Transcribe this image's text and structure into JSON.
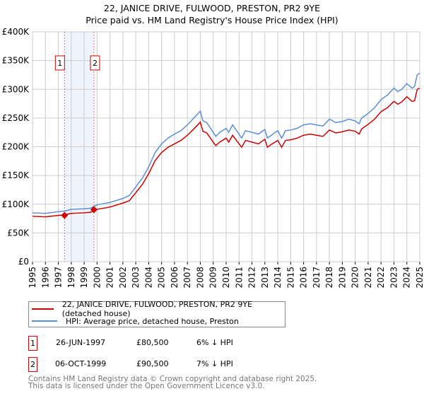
{
  "chart_data": {
    "type": "line",
    "title": "22, JANICE DRIVE, FULWOOD, PRESTON, PR2 9YE",
    "subtitle": "Price paid vs. HM Land Registry's House Price Index (HPI)",
    "xlim": [
      1995,
      2025
    ],
    "ylim": [
      0,
      400000
    ],
    "yticks": [
      {
        "v": 0,
        "l": "£0"
      },
      {
        "v": 50000,
        "l": "£50K"
      },
      {
        "v": 100000,
        "l": "£100K"
      },
      {
        "v": 150000,
        "l": "£150K"
      },
      {
        "v": 200000,
        "l": "£200K"
      },
      {
        "v": 250000,
        "l": "£250K"
      },
      {
        "v": 300000,
        "l": "£300K"
      },
      {
        "v": 350000,
        "l": "£350K"
      },
      {
        "v": 400000,
        "l": "£400K"
      }
    ],
    "xticks": [
      "1995",
      "1996",
      "1997",
      "1998",
      "1999",
      "2000",
      "2001",
      "2002",
      "2003",
      "2004",
      "2005",
      "2006",
      "2007",
      "2008",
      "2009",
      "2010",
      "2011",
      "2012",
      "2013",
      "2014",
      "2015",
      "2016",
      "2017",
      "2018",
      "2019",
      "2020",
      "2021",
      "2022",
      "2023",
      "2024",
      "2025"
    ],
    "x": [
      1995,
      1996,
      1997,
      1997.5,
      1998,
      1999,
      1999.5,
      2000,
      2001,
      2002,
      2002.5,
      2003,
      2003.5,
      2004,
      2004.5,
      2005,
      2005.5,
      2006,
      2006.5,
      2007,
      2007.5,
      2008,
      2008.2,
      2008.5,
      2009,
      2009.2,
      2009.5,
      2010,
      2010.2,
      2010.5,
      2011,
      2011.2,
      2011.5,
      2012,
      2012.5,
      2013,
      2013.2,
      2013.5,
      2014,
      2014.3,
      2014.6,
      2015,
      2015.5,
      2016,
      2016.5,
      2017,
      2017.5,
      2018,
      2018.5,
      2019,
      2019.5,
      2020,
      2020.3,
      2020.5,
      2021,
      2021.5,
      2022,
      2022.5,
      2023,
      2023.3,
      2023.6,
      2024,
      2024.4,
      2024.6,
      2024.8,
      2025
    ],
    "series": [
      {
        "name": "22, JANICE DRIVE, FULWOOD, PRESTON, PR2 9YE (detached house)",
        "color": "#cc0000",
        "values": [
          79,
          78,
          80.5,
          81.5,
          84,
          85,
          86,
          91,
          95,
          102,
          106,
          120,
          134,
          153,
          176,
          190,
          199,
          205,
          211,
          220,
          231,
          243,
          227,
          224,
          208,
          202,
          208,
          215,
          208,
          220,
          205,
          199,
          211,
          208,
          205,
          213,
          199,
          204,
          211,
          199,
          211,
          212,
          215,
          220,
          222,
          220,
          218,
          229,
          224,
          226,
          229,
          227,
          222,
          231,
          239,
          248,
          261,
          268,
          279,
          274,
          278,
          287,
          279,
          280,
          300,
          302
        ]
      },
      {
        "name": "HPI: Average price, detached house, Preston",
        "color": "#5b8fd4",
        "values": [
          85,
          84,
          87,
          88,
          91,
          92,
          93,
          99,
          103,
          110,
          115,
          130,
          145,
          165,
          190,
          205,
          215,
          222,
          228,
          238,
          250,
          262,
          245,
          242,
          225,
          218,
          225,
          232,
          225,
          238,
          222,
          215,
          228,
          225,
          222,
          230,
          215,
          220,
          228,
          215,
          228,
          229,
          232,
          238,
          240,
          238,
          236,
          248,
          242,
          244,
          248,
          245,
          240,
          250,
          258,
          268,
          282,
          290,
          302,
          296,
          300,
          310,
          302,
          305,
          325,
          328
        ]
      }
    ],
    "value_unit": "thousands GBP",
    "sales": [
      {
        "label": "1",
        "x": 1997.48,
        "price": 80500
      },
      {
        "label": "2",
        "x": 1999.76,
        "price": 90500
      }
    ],
    "shaded_range": [
      1997.48,
      1999.76
    ]
  },
  "legend": {
    "property": "22, JANICE DRIVE, FULWOOD, PRESTON, PR2 9YE (detached house)",
    "hpi": "HPI: Average price, detached house, Preston"
  },
  "transactions": [
    {
      "num": "1",
      "date": "26-JUN-1997",
      "price": "£80,500",
      "diff": "6% ↓ HPI"
    },
    {
      "num": "2",
      "date": "06-OCT-1999",
      "price": "£90,500",
      "diff": "7% ↓ HPI"
    }
  ],
  "footer": {
    "line1": "Contains HM Land Registry data © Crown copyright and database right 2025.",
    "line2": "This data is licensed under the Open Government Licence v3.0."
  }
}
